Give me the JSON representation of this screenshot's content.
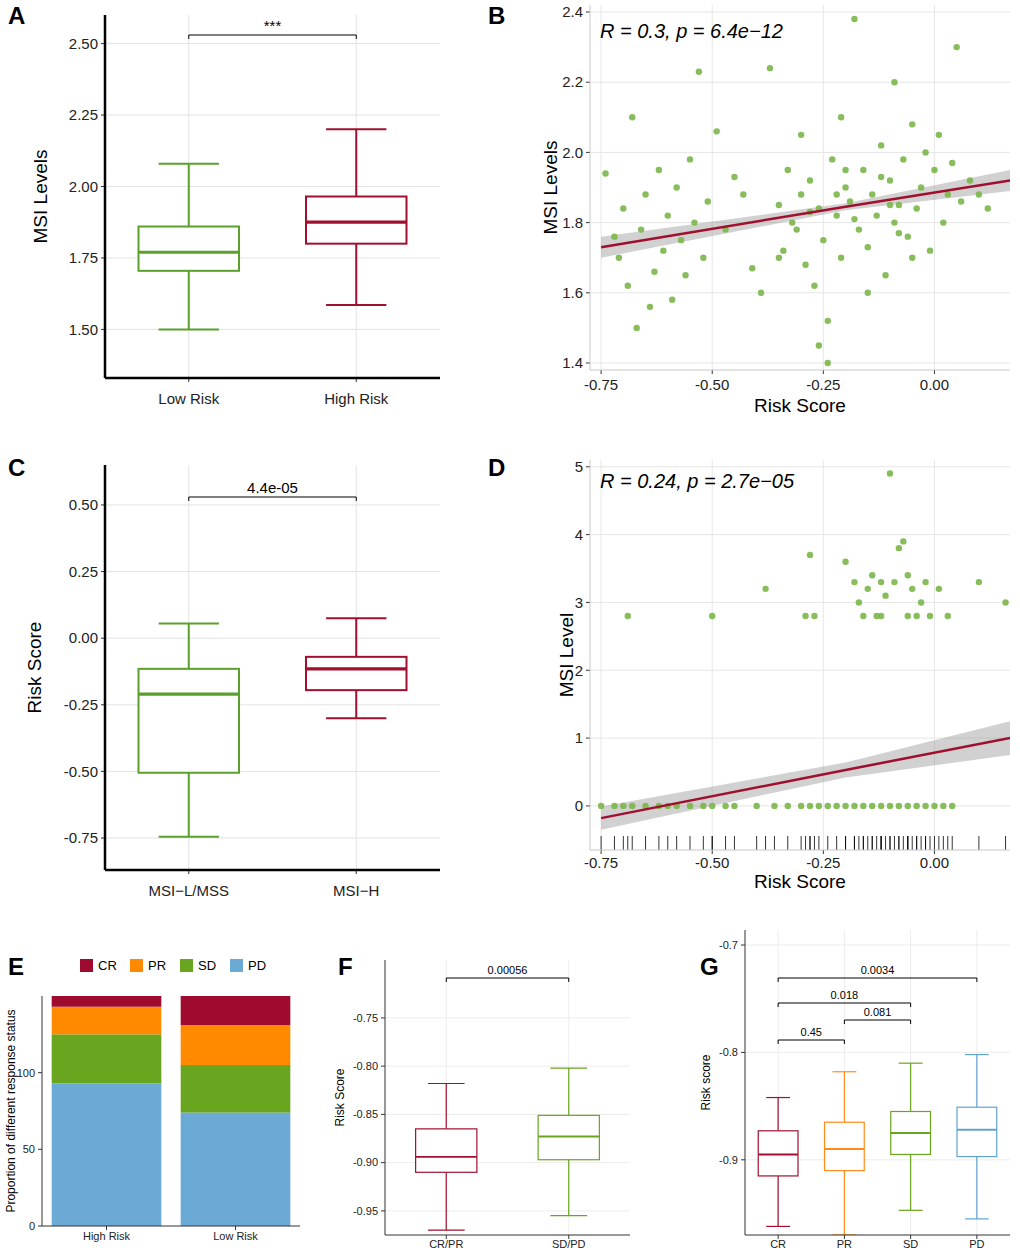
{
  "chart_data": [
    {
      "panel": "A",
      "type": "box",
      "y_label": "MSI Levels",
      "categories": [
        "Low Risk",
        "High Risk"
      ],
      "colors": [
        "#5aa02c",
        "#a0102e"
      ],
      "whisker_low": [
        1.5,
        1.585
      ],
      "q1": [
        1.705,
        1.8
      ],
      "median": [
        1.77,
        1.875
      ],
      "q3": [
        1.86,
        1.965
      ],
      "whisker_high": [
        2.08,
        2.2
      ],
      "ylim": [
        1.33,
        2.6
      ],
      "yticks": [
        {
          "value": 1.5,
          "label": "1.50"
        },
        1.75,
        {
          "value": 2,
          "label": "2.00"
        },
        2.25,
        {
          "value": 2.5,
          "label": "2.50"
        }
      ],
      "grid": true,
      "comparisons": [
        {
          "groups": [
            "Low Risk",
            "High Risk"
          ],
          "label": "***"
        }
      ]
    },
    {
      "panel": "B",
      "type": "scatter",
      "x_label": "Risk Score",
      "y_label": "MSI Levels",
      "annotation": "R = 0.3, p = 6.4e−12",
      "color": "#7ab648",
      "x": [
        -0.74,
        -0.72,
        -0.71,
        -0.7,
        -0.69,
        -0.68,
        -0.67,
        -0.66,
        -0.65,
        -0.64,
        -0.63,
        -0.62,
        -0.61,
        -0.6,
        -0.59,
        -0.58,
        -0.57,
        -0.56,
        -0.55,
        -0.54,
        -0.53,
        -0.52,
        -0.51,
        -0.49,
        -0.47,
        -0.45,
        -0.43,
        -0.41,
        -0.39,
        -0.37,
        -0.35,
        -0.34,
        -0.33,
        -0.32,
        -0.31,
        -0.3,
        -0.29,
        -0.28,
        -0.27,
        -0.26,
        -0.25,
        -0.24,
        -0.23,
        -0.22,
        -0.21,
        -0.2,
        -0.19,
        -0.18,
        -0.17,
        -0.16,
        -0.15,
        -0.14,
        -0.13,
        -0.12,
        -0.11,
        -0.1,
        -0.09,
        -0.08,
        -0.07,
        -0.06,
        -0.05,
        -0.04,
        -0.03,
        -0.02,
        -0.01,
        0.0,
        0.01,
        0.02,
        0.03,
        0.04,
        0.05,
        0.06,
        0.08,
        0.1,
        0.12,
        -0.26,
        -0.24,
        -0.21,
        -0.09,
        -0.3,
        -0.15,
        -0.05,
        -0.2,
        -0.12,
        -0.08,
        -0.35,
        -0.28,
        -0.22,
        -0.18,
        -0.1
      ],
      "y": [
        1.94,
        1.76,
        1.7,
        1.84,
        1.62,
        2.1,
        1.5,
        1.78,
        1.88,
        1.56,
        1.66,
        1.95,
        1.72,
        1.82,
        1.58,
        1.9,
        1.75,
        1.65,
        1.98,
        1.8,
        2.23,
        1.7,
        1.86,
        2.06,
        1.78,
        1.93,
        1.88,
        1.67,
        1.6,
        2.24,
        1.85,
        1.72,
        1.95,
        1.8,
        1.78,
        1.88,
        1.68,
        1.92,
        1.62,
        1.84,
        1.75,
        1.52,
        1.98,
        1.82,
        1.7,
        1.9,
        1.86,
        2.38,
        1.78,
        1.95,
        1.73,
        1.88,
        1.82,
        2.02,
        1.65,
        1.92,
        1.8,
        1.85,
        1.98,
        1.76,
        2.08,
        1.84,
        1.9,
        2.0,
        1.72,
        1.95,
        2.05,
        1.8,
        1.88,
        1.97,
        2.3,
        1.86,
        1.92,
        1.88,
        1.84,
        1.45,
        1.4,
        2.1,
        2.2,
        2.05,
        1.6,
        1.7,
        1.95,
        1.93,
        1.77,
        1.7,
        1.83,
        1.88,
        1.81,
        1.85
      ],
      "fit": {
        "color": "#a0102e",
        "x": [
          -0.75,
          -0.2,
          0.17
        ],
        "y": [
          1.73,
          1.845,
          1.92
        ],
        "lower": [
          1.7,
          1.835,
          1.89
        ],
        "upper": [
          1.76,
          1.855,
          1.95
        ]
      },
      "xlim": [
        -0.775,
        0.17
      ],
      "xticks": [
        -0.75,
        {
          "value": -0.5,
          "label": "-0.50"
        },
        -0.25,
        {
          "value": 0,
          "label": "0.00"
        }
      ],
      "ylim": [
        1.38,
        2.42
      ],
      "yticks": [
        1.4,
        1.6,
        1.8,
        {
          "value": 2,
          "label": "2.0"
        },
        2.2,
        2.4
      ],
      "grid": true
    },
    {
      "panel": "C",
      "type": "box",
      "y_label": "Risk Score",
      "categories": [
        "MSI−L/MSS",
        "MSI−H"
      ],
      "colors": [
        "#5aa02c",
        "#a0102e"
      ],
      "whisker_low": [
        -0.745,
        -0.3
      ],
      "q1": [
        -0.505,
        -0.195
      ],
      "median": [
        -0.21,
        -0.115
      ],
      "q3": [
        -0.115,
        -0.07
      ],
      "whisker_high": [
        0.055,
        0.075
      ],
      "ylim": [
        -0.87,
        0.65
      ],
      "yticks": [
        -0.75,
        {
          "value": -0.5,
          "label": "-0.50"
        },
        -0.25,
        {
          "value": 0,
          "label": "0.00"
        },
        0.25,
        {
          "value": 0.5,
          "label": "0.50"
        }
      ],
      "grid": true,
      "comparisons": [
        {
          "groups": [
            "MSI−L/MSS",
            "MSI−H"
          ],
          "label": "4.4e-05"
        }
      ]
    },
    {
      "panel": "D",
      "type": "scatter_rug",
      "x_label": "Risk Score",
      "y_label": "MSI Level",
      "annotation": "R = 0.24, p = 2.7e−05",
      "color": "#7ab648",
      "x": [
        -0.75,
        -0.72,
        -0.7,
        -0.68,
        -0.65,
        -0.62,
        -0.6,
        -0.58,
        -0.55,
        -0.52,
        -0.5,
        -0.47,
        -0.45,
        -0.4,
        -0.36,
        -0.33,
        -0.3,
        -0.28,
        -0.26,
        -0.24,
        -0.22,
        -0.2,
        -0.18,
        -0.16,
        -0.14,
        -0.12,
        -0.1,
        -0.08,
        -0.06,
        -0.04,
        -0.02,
        0.0,
        0.02,
        0.04,
        -0.69,
        -0.38,
        -0.29,
        -0.28,
        -0.27,
        -0.2,
        -0.18,
        -0.17,
        -0.15,
        -0.14,
        -0.13,
        -0.12,
        -0.11,
        -0.1,
        -0.09,
        -0.08,
        -0.07,
        -0.06,
        -0.05,
        -0.04,
        -0.03,
        -0.02,
        -0.01,
        0.01,
        0.03,
        0.1,
        0.16,
        -0.5,
        -0.12,
        -0.16,
        -0.06
      ],
      "y": [
        0,
        0,
        0,
        0,
        0,
        0,
        0,
        0,
        0,
        0,
        0,
        0,
        0,
        0,
        0,
        0,
        0,
        0,
        0,
        0,
        0,
        0,
        0,
        0,
        0,
        0,
        0,
        0,
        0,
        0,
        0,
        0,
        0,
        0,
        2.8,
        3.2,
        2.8,
        3.7,
        2.8,
        3.6,
        3.3,
        3.0,
        3.2,
        3.4,
        2.8,
        3.3,
        3.1,
        4.9,
        3.3,
        3.8,
        3.9,
        3.4,
        3.2,
        2.8,
        3.0,
        3.3,
        2.8,
        3.2,
        2.8,
        3.3,
        3.0,
        2.8,
        2.8,
        2.8,
        2.8
      ],
      "fit": {
        "color": "#a0102e",
        "x": [
          -0.75,
          -0.2,
          0.17
        ],
        "y": [
          -0.18,
          0.53,
          1.0
        ],
        "lower": [
          -0.35,
          0.42,
          0.75
        ],
        "upper": [
          -0.01,
          0.64,
          1.25
        ]
      },
      "xlim": [
        -0.775,
        0.17
      ],
      "xticks": [
        -0.75,
        {
          "value": -0.5,
          "label": "-0.50"
        },
        -0.25,
        {
          "value": 0,
          "label": "0.00"
        }
      ],
      "ylim": [
        -0.65,
        5.1
      ],
      "yticks": [
        0,
        1,
        2,
        3,
        4,
        5
      ],
      "grid": true
    },
    {
      "panel": "E",
      "type": "bar",
      "stacked": true,
      "y_label": "Proportion of different response status",
      "categories": [
        "High Risk",
        "Low Risk"
      ],
      "series": [
        {
          "name": "CR",
          "color": "#9e0b2e",
          "values": [
            7,
            19
          ]
        },
        {
          "name": "PR",
          "color": "#ff8a00",
          "values": [
            18,
            26
          ]
        },
        {
          "name": "SD",
          "color": "#6aa51f",
          "values": [
            32,
            31
          ]
        },
        {
          "name": "PD",
          "color": "#6aaad4",
          "values": [
            93,
            74
          ]
        }
      ],
      "ylim": [
        0,
        150
      ],
      "yticks": [
        0,
        50,
        100
      ],
      "grid": false,
      "legend": "top"
    },
    {
      "panel": "F",
      "type": "box",
      "y_label": "Risk Score",
      "categories": [
        "CR/PR",
        "SD/PD"
      ],
      "colors": [
        "#a0102e",
        "#6aa51f"
      ],
      "whisker_low": [
        -0.97,
        -0.955
      ],
      "q1": [
        -0.91,
        -0.897
      ],
      "median": [
        -0.894,
        -0.873
      ],
      "q3": [
        -0.865,
        -0.851
      ],
      "whisker_high": [
        -0.818,
        -0.802
      ],
      "ylim": [
        -0.975,
        -0.69
      ],
      "yticks": [
        -0.95,
        {
          "value": -0.9,
          "label": "-0.90"
        },
        -0.85,
        {
          "value": -0.8,
          "label": "-0.80"
        },
        -0.75
      ],
      "grid": true,
      "comparisons": [
        {
          "groups": [
            "CR/PR",
            "SD/PD"
          ],
          "label": "0.00056"
        }
      ]
    },
    {
      "panel": "G",
      "type": "box",
      "y_label": "Risk score",
      "categories": [
        "CR",
        "PR",
        "SD",
        "PD"
      ],
      "colors": [
        "#a0102e",
        "#ff8c1a",
        "#6aa51f",
        "#5fa3d0"
      ],
      "whisker_low": [
        -0.962,
        -0.97,
        -0.947,
        -0.955
      ],
      "q1": [
        -0.915,
        -0.91,
        -0.895,
        -0.897
      ],
      "median": [
        -0.895,
        -0.89,
        -0.875,
        -0.872
      ],
      "q3": [
        -0.873,
        -0.865,
        -0.855,
        -0.851
      ],
      "whisker_high": [
        -0.842,
        -0.818,
        -0.81,
        -0.802
      ],
      "ylim": [
        -0.97,
        -0.686
      ],
      "yticks": [
        -0.9,
        -0.8,
        -0.7
      ],
      "grid": true,
      "comparisons": [
        {
          "groups": [
            "CR",
            "PD"
          ],
          "label": "0.0034"
        },
        {
          "groups": [
            "CR",
            "SD"
          ],
          "label": "0.018"
        },
        {
          "groups": [
            "PR",
            "SD"
          ],
          "label": "0.081"
        },
        {
          "groups": [
            "CR",
            "PR"
          ],
          "label": "0.45"
        }
      ]
    }
  ]
}
